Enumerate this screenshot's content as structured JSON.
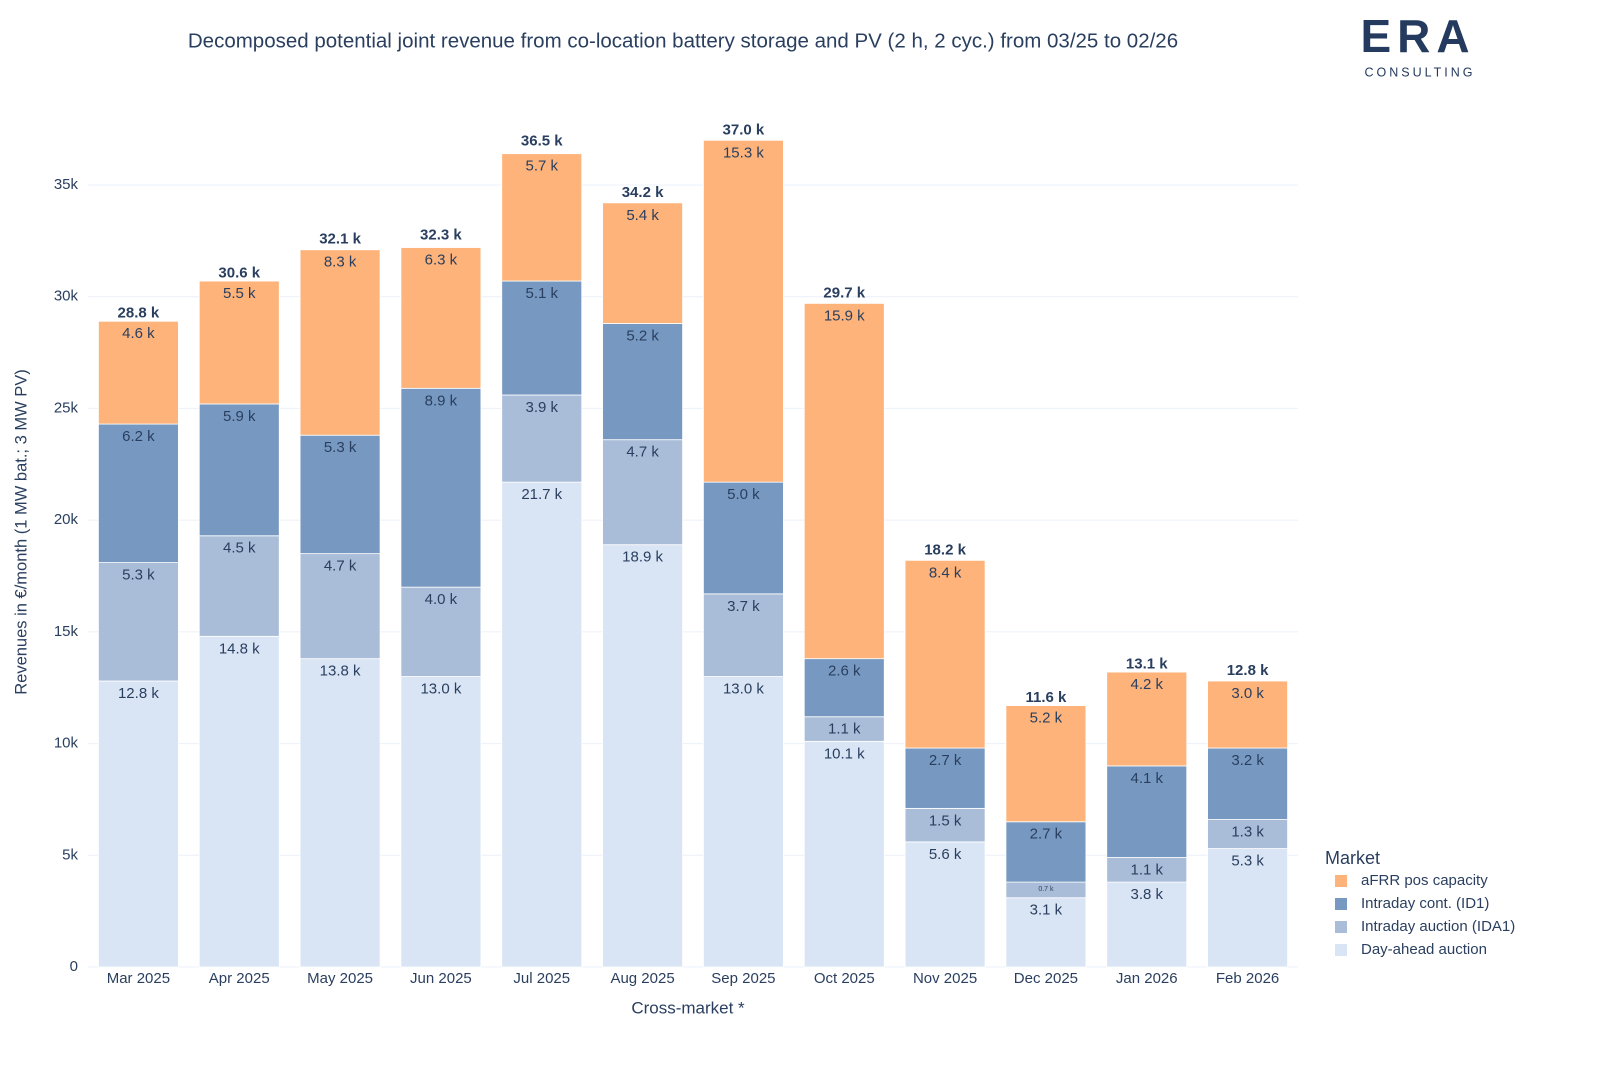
{
  "chart_data": {
    "type": "stacked_bar",
    "title": "Decomposed potential joint revenue from co-location battery storage and PV (2 h, 2 cyc.) from 03/25 to 02/26",
    "logo": {
      "mark": "ERA",
      "subtitle": "CONSULTING"
    },
    "x_label": "Cross-market *",
    "y_label": "Revenues in €/month (1 MW bat.; 3 MW PV)",
    "legend_title": "Market",
    "legend_position": "right-bottom",
    "categories": [
      "Mar 2025",
      "Apr 2025",
      "May 2025",
      "Jun 2025",
      "Jul 2025",
      "Aug 2025",
      "Sep 2025",
      "Oct 2025",
      "Nov 2025",
      "Dec 2025",
      "Jan 2026",
      "Feb 2026"
    ],
    "series": [
      {
        "name": "aFRR pos capacity",
        "color": "#fdb37a",
        "values": [
          4600,
          5500,
          8300,
          6300,
          5700,
          5400,
          15300,
          15900,
          8400,
          5200,
          4200,
          3000
        ],
        "value_labels": [
          "4.6 k",
          "5.5 k",
          "8.3 k",
          "6.3 k",
          "5.7 k",
          "5.4 k",
          "15.3 k",
          "15.9 k",
          "8.4 k",
          "5.2 k",
          "4.2 k",
          "3.0 k"
        ]
      },
      {
        "name": "Intraday cont. (ID1)",
        "color": "#7799c1",
        "values": [
          6200,
          5900,
          5300,
          8900,
          5100,
          5200,
          5000,
          2600,
          2700,
          2700,
          4100,
          3200
        ],
        "value_labels": [
          "6.2 k",
          "5.9 k",
          "5.3 k",
          "8.9 k",
          "5.1 k",
          "5.2 k",
          "5.0 k",
          "2.6 k",
          "2.7 k",
          "2.7 k",
          "4.1 k",
          "3.2 k"
        ]
      },
      {
        "name": "Intraday auction (IDA1)",
        "color": "#aabdd8",
        "values": [
          5300,
          4500,
          4700,
          4000,
          3900,
          4700,
          3700,
          1100,
          1500,
          700,
          1100,
          1300
        ],
        "value_labels": [
          "5.3 k",
          "4.5 k",
          "4.7 k",
          "4.0 k",
          "3.9 k",
          "4.7 k",
          "3.7 k",
          "1.1 k",
          "1.5 k",
          "0.7 k",
          "1.1 k",
          "1.3 k"
        ]
      },
      {
        "name": "Day-ahead auction",
        "color": "#d9e5f5",
        "values": [
          12800,
          14800,
          13800,
          13000,
          21700,
          18900,
          13000,
          10100,
          5600,
          3100,
          3800,
          5300
        ],
        "value_labels": [
          "12.8 k",
          "14.8 k",
          "13.8 k",
          "13.0 k",
          "21.7 k",
          "18.9 k",
          "13.0 k",
          "10.1 k",
          "5.6 k",
          "3.1 k",
          "3.8 k",
          "5.3 k"
        ]
      }
    ],
    "totals": [
      28800,
      30600,
      32100,
      32300,
      36500,
      34200,
      37000,
      29700,
      18200,
      11600,
      13100,
      12800
    ],
    "total_labels": [
      "28.8 k",
      "30.6 k",
      "32.1 k",
      "32.3 k",
      "36.5 k",
      "34.2 k",
      "37.0 k",
      "29.7 k",
      "18.2 k",
      "11.6 k",
      "13.1 k",
      "12.8 k"
    ],
    "ylim": [
      0,
      39000
    ],
    "yticks": [
      0,
      {
        "value": 5000,
        "label": "5k"
      },
      {
        "value": 10000,
        "label": "10k"
      },
      {
        "value": 15000,
        "label": "15k"
      },
      {
        "value": 20000,
        "label": "20k"
      },
      {
        "value": 25000,
        "label": "25k"
      },
      {
        "value": 30000,
        "label": "30k"
      },
      {
        "value": 35000,
        "label": "35k"
      }
    ],
    "grid": true
  }
}
